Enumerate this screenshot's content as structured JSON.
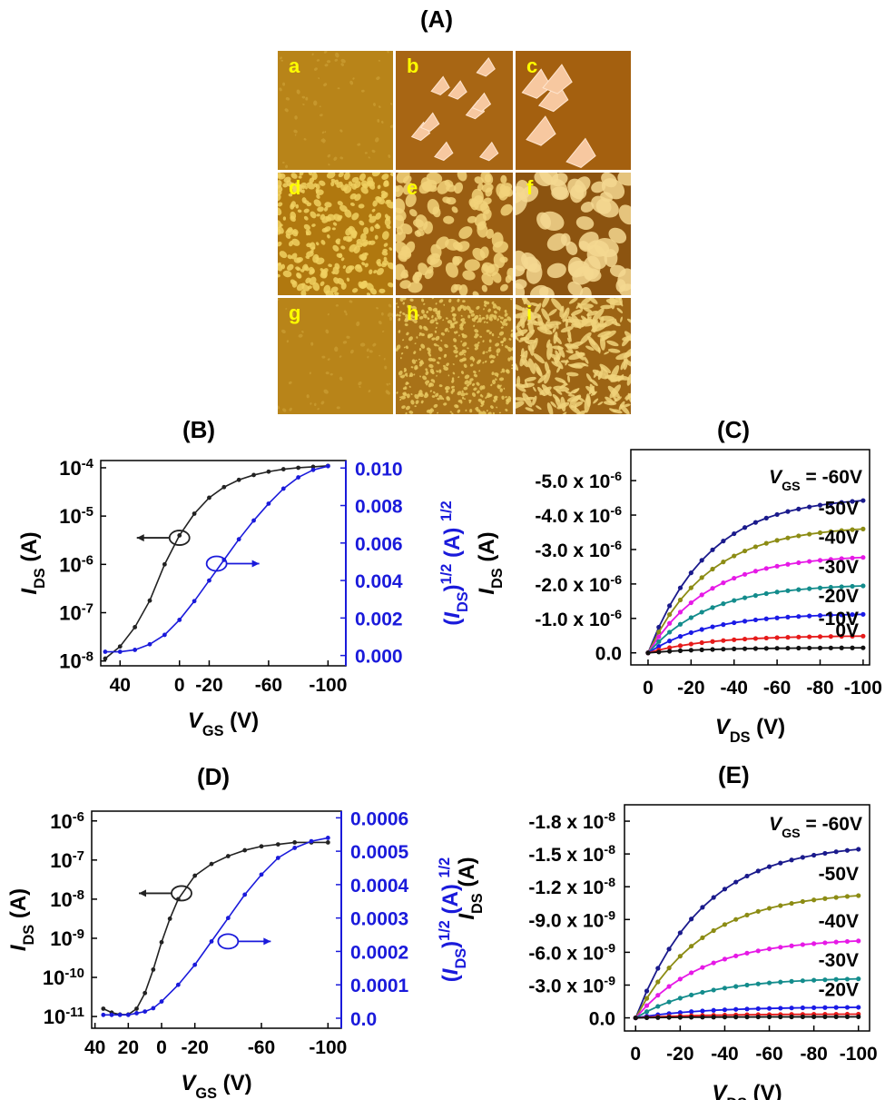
{
  "panel_A": {
    "title": "(A)",
    "tiles": [
      {
        "letter": "a",
        "style": "smooth"
      },
      {
        "letter": "b",
        "style": "flakes"
      },
      {
        "letter": "c",
        "style": "flakes-large"
      },
      {
        "letter": "d",
        "style": "worm"
      },
      {
        "letter": "e",
        "style": "grains"
      },
      {
        "letter": "f",
        "style": "grains-large"
      },
      {
        "letter": "g",
        "style": "smooth"
      },
      {
        "letter": "h",
        "style": "fine"
      },
      {
        "letter": "i",
        "style": "rods"
      }
    ]
  },
  "chart_data": [
    {
      "id": "B",
      "title": "(B)",
      "type": "line",
      "xlabel": {
        "main": "V",
        "sub": "GS",
        "tail": " (V)"
      },
      "ylabel_left": {
        "main": "I",
        "sub": "DS",
        "tail": " (A)"
      },
      "ylabel_right": {
        "pre": "(",
        "main": "I",
        "sub": "DS",
        "tail": ")",
        "sup1": "1/2",
        "mid": " (A) ",
        "sup2": "1/2"
      },
      "x_ticks": [
        "40",
        "0",
        "-20",
        "-60",
        "-100"
      ],
      "x_tick_values": [
        40,
        0,
        -20,
        -60,
        -100
      ],
      "xlim": [
        53,
        -112
      ],
      "yleft_ticks": [
        {
          "base": "10",
          "exp": "-4",
          "v": -4
        },
        {
          "base": "10",
          "exp": "-5",
          "v": -5
        },
        {
          "base": "10",
          "exp": "-6",
          "v": -6
        },
        {
          "base": "10",
          "exp": "-7",
          "v": -7
        },
        {
          "base": "10",
          "exp": "-8",
          "v": -8
        }
      ],
      "yleft_log_range": [
        -8.1,
        -3.85
      ],
      "yright_ticks": [
        "0.010",
        "0.008",
        "0.006",
        "0.004",
        "0.002",
        "0.000"
      ],
      "yright_tick_values": [
        0.01,
        0.008,
        0.006,
        0.004,
        0.002,
        0.0
      ],
      "yright_range": [
        -0.00055,
        0.0104
      ],
      "series": [
        {
          "axis": "left",
          "color": "#222222",
          "x": [
            50,
            40,
            30,
            20,
            10,
            0,
            -10,
            -20,
            -30,
            -40,
            -50,
            -60,
            -70,
            -80,
            -90,
            -100
          ],
          "log10_y": [
            -7.95,
            -7.7,
            -7.3,
            -6.75,
            -6.0,
            -5.4,
            -4.95,
            -4.62,
            -4.4,
            -4.25,
            -4.15,
            -4.08,
            -4.03,
            -4.0,
            -3.98,
            -3.96
          ]
        },
        {
          "axis": "right",
          "color": "#1a1adb",
          "x": [
            50,
            40,
            30,
            20,
            10,
            0,
            -10,
            -20,
            -30,
            -40,
            -50,
            -60,
            -70,
            -80,
            -90,
            -100
          ],
          "y": [
            0.0002,
            0.0002,
            0.0003,
            0.0006,
            0.0011,
            0.0019,
            0.0029,
            0.004,
            0.0051,
            0.0062,
            0.0072,
            0.0081,
            0.0089,
            0.0095,
            0.0099,
            0.0101
          ]
        }
      ],
      "annotation_arrows": [
        {
          "color": "#222222",
          "x": 0,
          "log10_y": -5.45,
          "direction": "left"
        },
        {
          "color": "#1a1adb",
          "x": -25,
          "y": 0.0049,
          "direction": "right"
        }
      ]
    },
    {
      "id": "C",
      "title": "(C)",
      "type": "line",
      "xlabel": {
        "main": "V",
        "sub": "DS",
        "tail": " (V)"
      },
      "ylabel": {
        "main": "I",
        "sub": "DS",
        "tail": " (A)"
      },
      "x_ticks": [
        "0",
        "-20",
        "-40",
        "-60",
        "-80",
        "-100"
      ],
      "x_tick_values": [
        0,
        -20,
        -40,
        -60,
        -80,
        -100
      ],
      "xlim": [
        8,
        -103
      ],
      "y_ticks": [
        {
          "m": "-5.0 x 10",
          "e": "-6",
          "v": 5.0
        },
        {
          "m": "-4.0 x 10",
          "e": "-6",
          "v": 4.0
        },
        {
          "m": "-3.0 x 10",
          "e": "-6",
          "v": 3.0
        },
        {
          "m": "-2.0 x 10",
          "e": "-6",
          "v": 2.0
        },
        {
          "m": "-1.0 x 10",
          "e": "-6",
          "v": 1.0
        },
        {
          "m": "0.0",
          "e": "",
          "v": 0.0
        }
      ],
      "y_unit": "1e-6 A (magnitude)",
      "ylim": [
        -0.35,
        5.9
      ],
      "series": [
        {
          "name": "VGS = -60V",
          "color": "#1a1a8c",
          "end_value": 4.55
        },
        {
          "name": "-50V",
          "color": "#8c8c14",
          "end_value": 3.7
        },
        {
          "name": "-40V",
          "color": "#e619e6",
          "end_value": 2.85
        },
        {
          "name": "-30V",
          "color": "#138c8c",
          "end_value": 2.0
        },
        {
          "name": "-20V",
          "color": "#1a1ae6",
          "end_value": 1.15
        },
        {
          "name": "-10V",
          "color": "#e61a1a",
          "end_value": 0.5
        },
        {
          "name": "0V",
          "color": "#111111",
          "end_value": 0.15
        }
      ],
      "labels": [
        {
          "pre": "V",
          "sub": "GS",
          "post": " = -60V"
        },
        {
          "pre": "-50V",
          "sub": "",
          "post": ""
        },
        {
          "pre": "-40V",
          "sub": "",
          "post": ""
        },
        {
          "pre": "-30V",
          "sub": "",
          "post": ""
        },
        {
          "pre": "-20V",
          "sub": "",
          "post": ""
        },
        {
          "pre": "-10V",
          "sub": "",
          "post": ""
        },
        {
          "pre": "0V",
          "sub": "",
          "post": ""
        }
      ]
    },
    {
      "id": "D",
      "title": "(D)",
      "type": "line",
      "xlabel": {
        "main": "V",
        "sub": "GS",
        "tail": " (V)"
      },
      "ylabel_left": {
        "main": "I",
        "sub": "DS",
        "tail": " (A)"
      },
      "ylabel_right": {
        "pre": "(",
        "main": "I",
        "sub": "DS",
        "tail": ")",
        "sup1": "1/2",
        "mid": " (A) ",
        "sup2": "1/2"
      },
      "x_ticks": [
        "40",
        "20",
        "0",
        "-20",
        "-60",
        "-100"
      ],
      "x_tick_values": [
        40,
        20,
        0,
        -20,
        -60,
        -100
      ],
      "xlim": [
        42,
        -108
      ],
      "yleft_ticks": [
        {
          "base": "10",
          "exp": "-6",
          "v": -6
        },
        {
          "base": "10",
          "exp": "-7",
          "v": -7
        },
        {
          "base": "10",
          "exp": "-8",
          "v": -8
        },
        {
          "base": "10",
          "exp": "-9",
          "v": -9
        },
        {
          "base": "10",
          "exp": "-10",
          "v": -10
        },
        {
          "base": "10",
          "exp": "-11",
          "v": -11
        }
      ],
      "yleft_log_range": [
        -11.3,
        -5.75
      ],
      "yright_ticks": [
        "0.0006",
        "0.0005",
        "0.0004",
        "0.0003",
        "0.0002",
        "0.0001",
        "0.0"
      ],
      "yright_tick_values": [
        0.0006,
        0.0005,
        0.0004,
        0.0003,
        0.0002,
        0.0001,
        0.0
      ],
      "yright_range": [
        -3e-05,
        0.00062
      ],
      "series": [
        {
          "axis": "left",
          "color": "#222222",
          "x": [
            35,
            30,
            25,
            20,
            15,
            10,
            5,
            0,
            -5,
            -10,
            -20,
            -30,
            -40,
            -50,
            -60,
            -70,
            -80,
            -90,
            -100
          ],
          "log10_y": [
            -10.8,
            -10.9,
            -10.95,
            -10.95,
            -10.8,
            -10.4,
            -9.8,
            -9.1,
            -8.5,
            -8.0,
            -7.4,
            -7.1,
            -6.9,
            -6.75,
            -6.65,
            -6.6,
            -6.55,
            -6.55,
            -6.55
          ]
        },
        {
          "axis": "right",
          "color": "#1a1adb",
          "x": [
            35,
            30,
            25,
            20,
            15,
            10,
            5,
            0,
            -10,
            -20,
            -30,
            -40,
            -50,
            -60,
            -70,
            -80,
            -90,
            -100
          ],
          "y": [
            1e-05,
            1e-05,
            1e-05,
            1e-05,
            1.5e-05,
            2e-05,
            3e-05,
            5e-05,
            0.0001,
            0.00016,
            0.00023,
            0.0003,
            0.00037,
            0.00043,
            0.00048,
            0.00051,
            0.00053,
            0.00054
          ]
        }
      ],
      "annotation_arrows": [
        {
          "color": "#222222",
          "x": -12,
          "log10_y": -7.85,
          "direction": "left"
        },
        {
          "color": "#1a1adb",
          "x": -40,
          "y": 0.00023,
          "direction": "right"
        }
      ]
    },
    {
      "id": "E",
      "title": "(E)",
      "type": "line",
      "xlabel": {
        "main": "V",
        "sub": "DS",
        "tail": " (V)"
      },
      "ylabel": {
        "main": "I",
        "sub": "DS",
        "tail": " (A)"
      },
      "x_ticks": [
        "0",
        "-20",
        "-40",
        "-60",
        "-80",
        "-100"
      ],
      "x_tick_values": [
        0,
        -20,
        -40,
        -60,
        -80,
        -100
      ],
      "xlim": [
        5,
        -105
      ],
      "y_ticks": [
        {
          "m": "-1.8 x 10",
          "e": "-8",
          "v": 18
        },
        {
          "m": "-1.5 x 10",
          "e": "-8",
          "v": 15
        },
        {
          "m": "-1.2 x 10",
          "e": "-8",
          "v": 12
        },
        {
          "m": "-9.0 x 10",
          "e": "-9",
          "v": 9
        },
        {
          "m": "-6.0 x 10",
          "e": "-9",
          "v": 6
        },
        {
          "m": "-3.0 x 10",
          "e": "-9",
          "v": 3
        },
        {
          "m": "0.0",
          "e": "",
          "v": 0
        }
      ],
      "y_unit": "1e-9 A (magnitude)",
      "ylim": [
        -1.2,
        19.5
      ],
      "series": [
        {
          "name": "VGS = -60V",
          "color": "#1a1a8c",
          "end_value": 16.0
        },
        {
          "name": "-50V",
          "color": "#8c8c14",
          "end_value": 11.6
        },
        {
          "name": "-40V",
          "color": "#e619e6",
          "end_value": 7.3
        },
        {
          "name": "-30V",
          "color": "#138c8c",
          "end_value": 3.7
        },
        {
          "name": "-20V",
          "color": "#1a1ae6",
          "end_value": 1.0
        },
        {
          "name": "-10V",
          "color": "#e61a1a",
          "end_value": 0.35
        },
        {
          "name": "0V",
          "color": "#111111",
          "end_value": 0.1
        }
      ],
      "labels": [
        {
          "pre": "V",
          "sub": "GS",
          "post": " = -60V"
        },
        {
          "pre": "-50V",
          "sub": "",
          "post": ""
        },
        {
          "pre": "-40V",
          "sub": "",
          "post": ""
        },
        {
          "pre": "-30V",
          "sub": "",
          "post": ""
        },
        {
          "pre": "-20V",
          "sub": "",
          "post": ""
        }
      ]
    }
  ]
}
